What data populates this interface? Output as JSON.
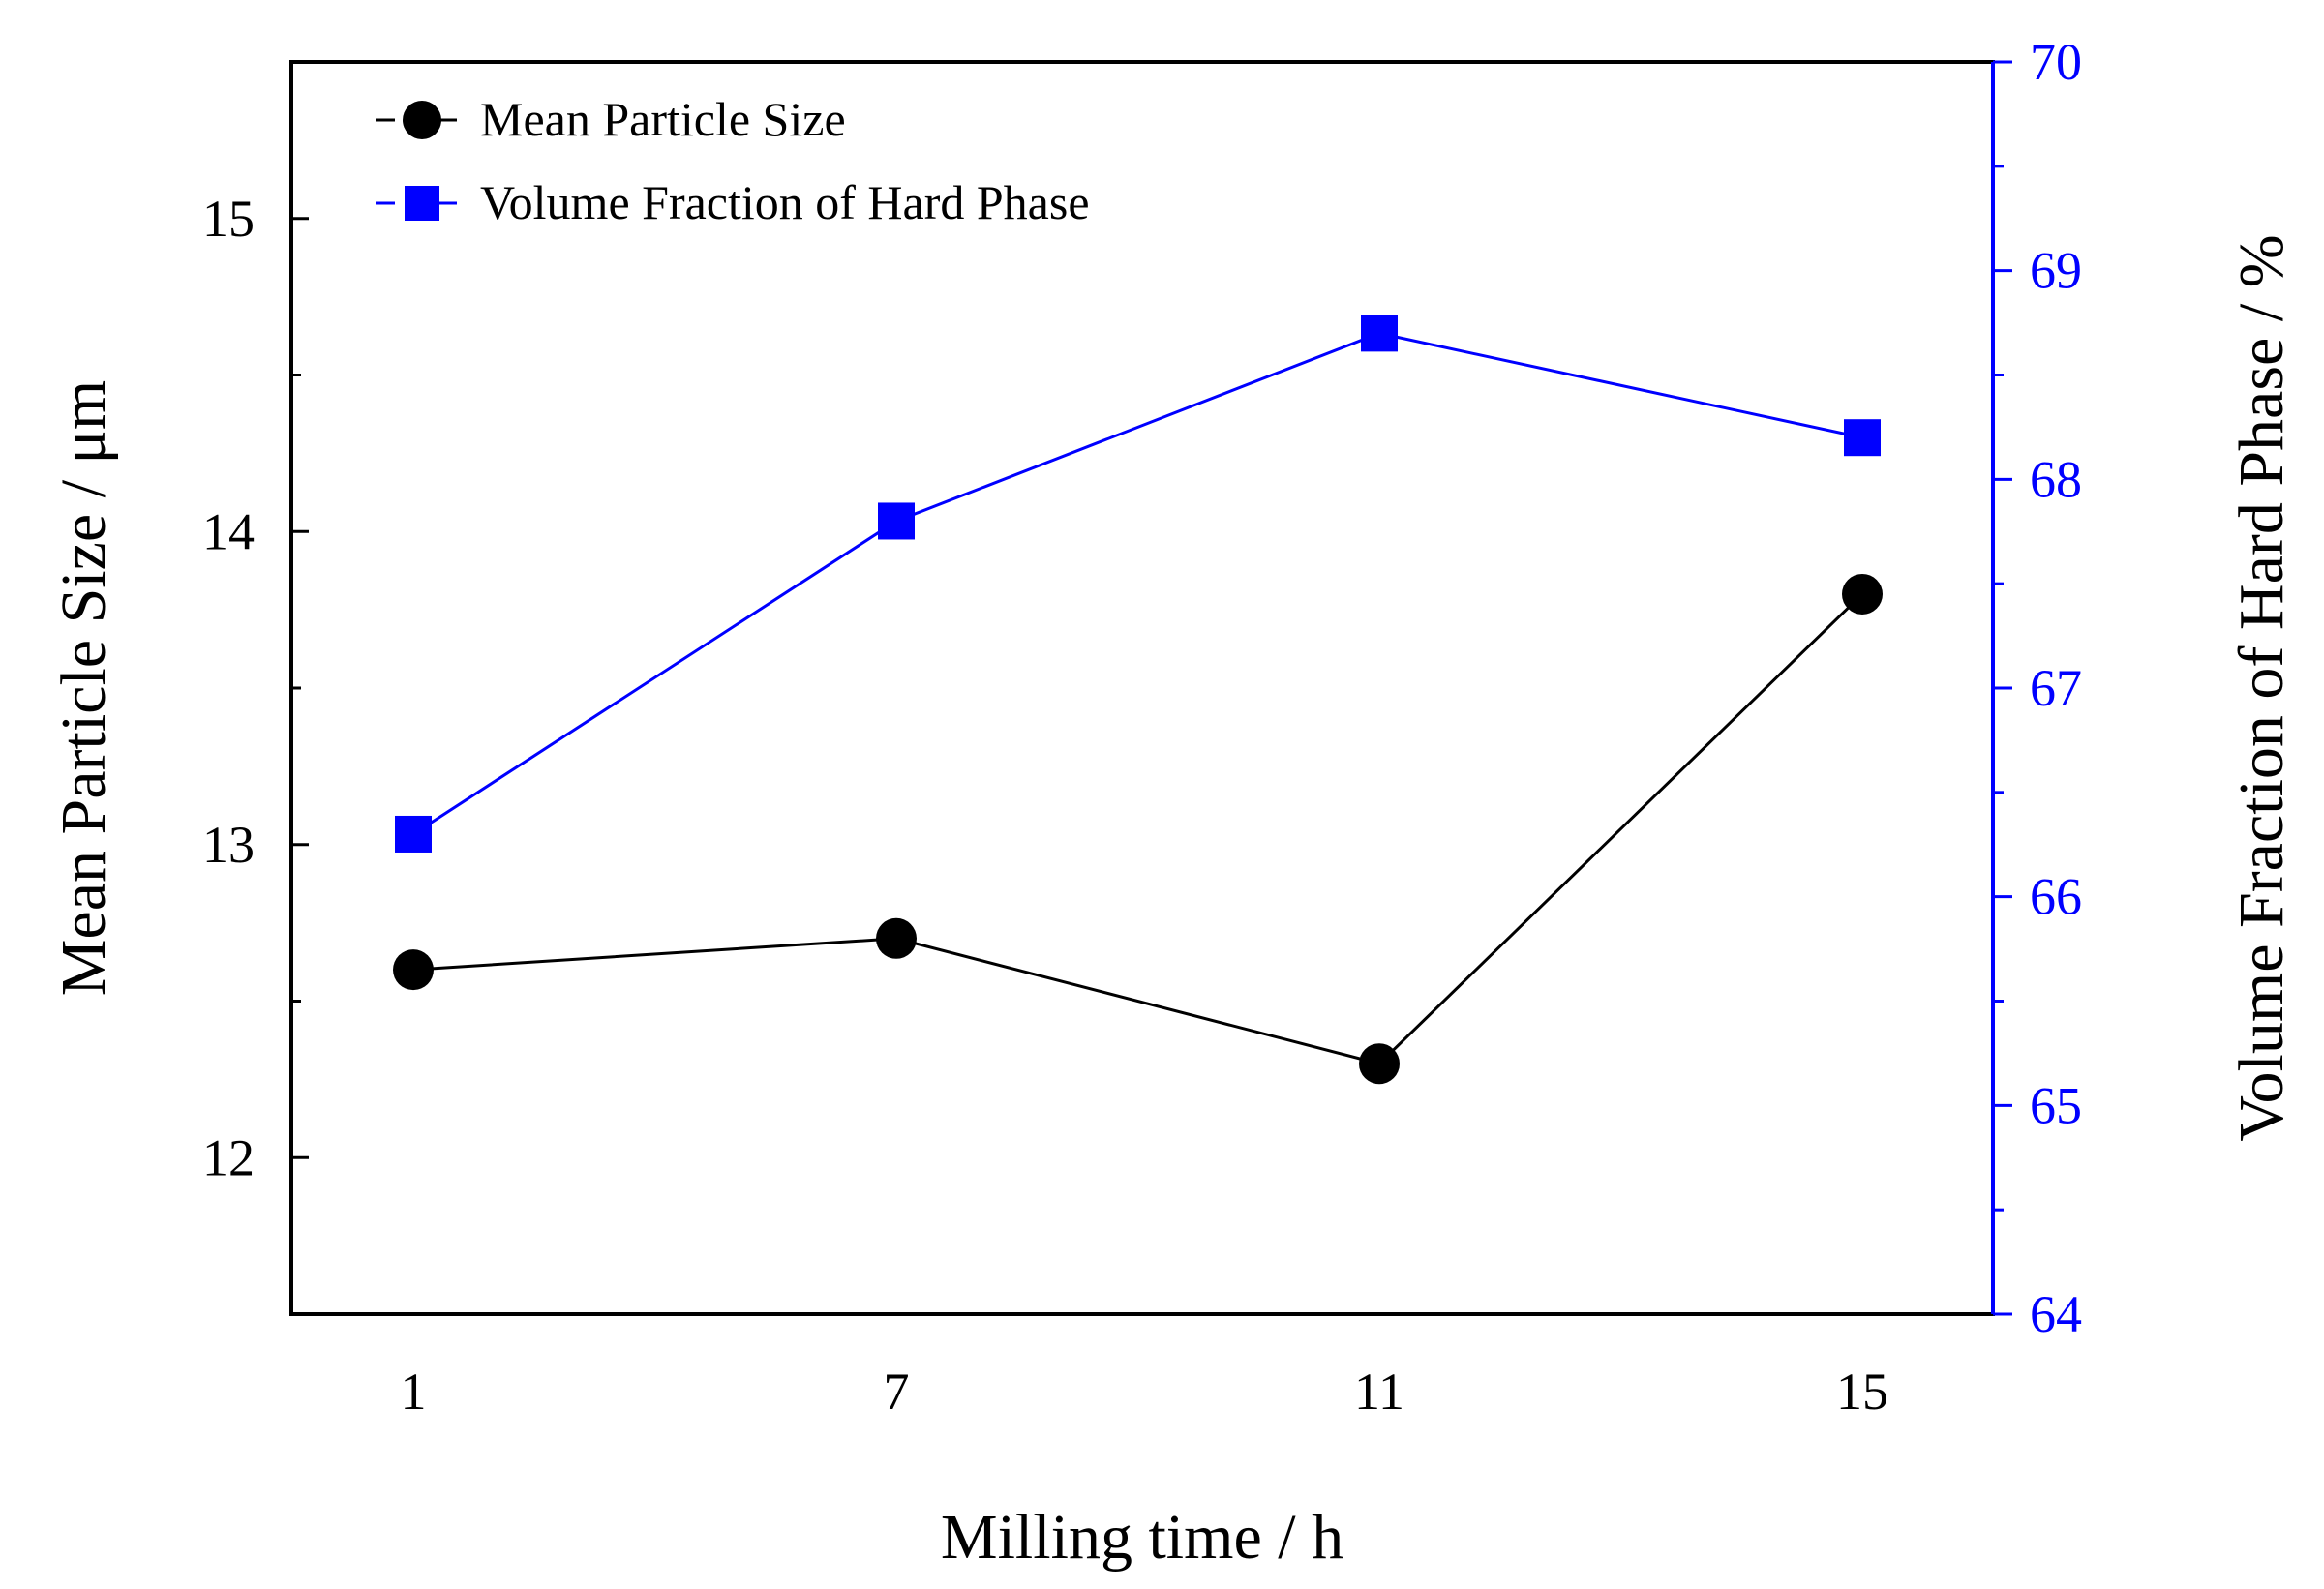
{
  "chart_data": {
    "type": "line",
    "x_categories": [
      "1",
      "7",
      "11",
      "15"
    ],
    "xlabel": "Milling time / h",
    "ylabel_left": "Mean Particle Size / μm",
    "ylabel_right": "Volume Fraction of Hard Phase / %",
    "ylim_left": [
      11.5,
      15.5
    ],
    "yticks_left": [
      "12",
      "13",
      "14",
      "15"
    ],
    "ylim_right": [
      64,
      70
    ],
    "yticks_right": [
      "64",
      "65",
      "66",
      "67",
      "68",
      "69",
      "70"
    ],
    "grid": false,
    "legend_position": "top-left",
    "series": [
      {
        "name": "Mean Particle Size",
        "axis": "left",
        "color": "#000000",
        "marker": "circle",
        "values": [
          12.6,
          12.7,
          12.3,
          13.8
        ]
      },
      {
        "name": "Volume Fraction of Hard Phase",
        "axis": "right",
        "color": "#0000ff",
        "marker": "square",
        "values": [
          66.3,
          67.8,
          68.7,
          68.2
        ]
      }
    ]
  }
}
